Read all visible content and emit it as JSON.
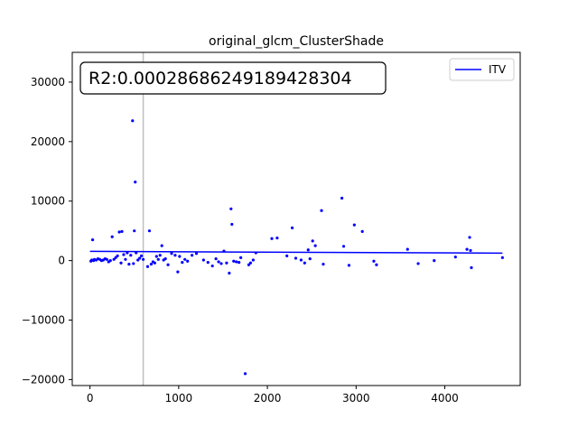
{
  "chart_data": {
    "type": "scatter",
    "title": "original_glcm_ClusterShade",
    "xlabel": "",
    "ylabel": "",
    "xlim": [
      -200,
      4850
    ],
    "ylim": [
      -21000,
      35000
    ],
    "x_ticks": [
      0,
      1000,
      2000,
      3000,
      4000
    ],
    "y_ticks": [
      -20000,
      -10000,
      0,
      10000,
      20000,
      30000
    ],
    "vline_x": 600,
    "annotation": "R2:0.00028686249189428304",
    "legend": {
      "position": "top-right",
      "entries": [
        {
          "label": "ITV",
          "color": "#0000ff"
        }
      ]
    },
    "trend_line": {
      "color": "#0000ff",
      "x": [
        0,
        4650
      ],
      "y": [
        1550,
        1250
      ]
    },
    "series": [
      {
        "color": "#0000ff",
        "points": [
          [
            10,
            -100
          ],
          [
            20,
            100
          ],
          [
            30,
            3500
          ],
          [
            40,
            0
          ],
          [
            50,
            200
          ],
          [
            70,
            100
          ],
          [
            90,
            300
          ],
          [
            110,
            200
          ],
          [
            130,
            0
          ],
          [
            150,
            100
          ],
          [
            170,
            300
          ],
          [
            190,
            200
          ],
          [
            210,
            -200
          ],
          [
            230,
            0
          ],
          [
            250,
            4000
          ],
          [
            270,
            200
          ],
          [
            290,
            500
          ],
          [
            310,
            800
          ],
          [
            330,
            4800
          ],
          [
            350,
            -400
          ],
          [
            360,
            4900
          ],
          [
            380,
            1000
          ],
          [
            400,
            200
          ],
          [
            420,
            1300
          ],
          [
            440,
            -600
          ],
          [
            460,
            900
          ],
          [
            480,
            23500
          ],
          [
            490,
            -500
          ],
          [
            500,
            5000
          ],
          [
            510,
            13200
          ],
          [
            520,
            1300
          ],
          [
            540,
            100
          ],
          [
            560,
            400
          ],
          [
            580,
            800
          ],
          [
            600,
            200
          ],
          [
            650,
            -1000
          ],
          [
            670,
            5000
          ],
          [
            690,
            -600
          ],
          [
            710,
            -200
          ],
          [
            730,
            -400
          ],
          [
            750,
            700
          ],
          [
            770,
            200
          ],
          [
            790,
            900
          ],
          [
            810,
            2500
          ],
          [
            830,
            100
          ],
          [
            850,
            300
          ],
          [
            880,
            -700
          ],
          [
            920,
            1200
          ],
          [
            960,
            900
          ],
          [
            990,
            -1900
          ],
          [
            1010,
            700
          ],
          [
            1040,
            -300
          ],
          [
            1070,
            200
          ],
          [
            1100,
            -100
          ],
          [
            1150,
            900
          ],
          [
            1200,
            1200
          ],
          [
            1280,
            100
          ],
          [
            1330,
            -300
          ],
          [
            1380,
            -900
          ],
          [
            1420,
            300
          ],
          [
            1450,
            -200
          ],
          [
            1480,
            -500
          ],
          [
            1510,
            1600
          ],
          [
            1540,
            -400
          ],
          [
            1570,
            -2100
          ],
          [
            1590,
            8700
          ],
          [
            1600,
            6100
          ],
          [
            1620,
            -100
          ],
          [
            1650,
            -200
          ],
          [
            1680,
            -300
          ],
          [
            1700,
            500
          ],
          [
            1750,
            -19000
          ],
          [
            1790,
            -700
          ],
          [
            1810,
            -400
          ],
          [
            1840,
            100
          ],
          [
            1870,
            1300
          ],
          [
            2050,
            3700
          ],
          [
            2110,
            3800
          ],
          [
            2220,
            800
          ],
          [
            2280,
            5500
          ],
          [
            2320,
            400
          ],
          [
            2380,
            100
          ],
          [
            2420,
            -400
          ],
          [
            2460,
            1800
          ],
          [
            2480,
            300
          ],
          [
            2510,
            3300
          ],
          [
            2540,
            2500
          ],
          [
            2610,
            8400
          ],
          [
            2630,
            -600
          ],
          [
            2840,
            10500
          ],
          [
            2860,
            2400
          ],
          [
            2920,
            -800
          ],
          [
            2980,
            6000
          ],
          [
            3070,
            4900
          ],
          [
            3200,
            -100
          ],
          [
            3230,
            -700
          ],
          [
            3580,
            1900
          ],
          [
            3700,
            -500
          ],
          [
            3880,
            0
          ],
          [
            4120,
            600
          ],
          [
            4250,
            1900
          ],
          [
            4280,
            3900
          ],
          [
            4290,
            1700
          ],
          [
            4300,
            -1200
          ],
          [
            4650,
            500
          ]
        ]
      }
    ]
  }
}
